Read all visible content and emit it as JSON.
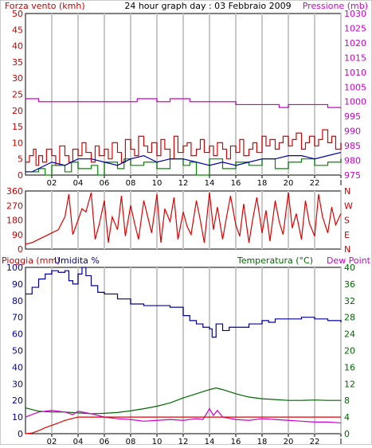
{
  "chart_data": [
    {
      "id": "wind_pressure",
      "type": "line",
      "title": "24 hour graph day : 03 Febbraio 2009",
      "ylabel_left": "Forza vento (kmh)",
      "ylabel_right": "Pressione (mb)",
      "x_ticks": [
        "02",
        "04",
        "06",
        "08",
        "10",
        "12",
        "14",
        "16",
        "18",
        "20",
        "22",
        "I"
      ],
      "y_left_ticks": [
        0,
        5,
        10,
        15,
        20,
        25,
        30,
        35,
        40,
        45,
        50
      ],
      "y_right_ticks": [
        975,
        980,
        985,
        990,
        995,
        1000,
        1005,
        1010,
        1015,
        1020,
        1025,
        1030
      ],
      "ylim_left": [
        0,
        50
      ],
      "ylim_right": [
        975,
        1030
      ],
      "xlim": [
        0,
        24
      ],
      "series": [
        {
          "role": "pressure",
          "color": "#cc00cc",
          "x": [
            0,
            0.5,
            1,
            2,
            3,
            4,
            5,
            6,
            7,
            8,
            8.5,
            9,
            10,
            11,
            12,
            12.5,
            13,
            14,
            15,
            16,
            17,
            18,
            19,
            19.3,
            20,
            21,
            22,
            23,
            24
          ],
          "y": [
            1001,
            1001,
            1000,
            1000,
            1000,
            1000,
            1000,
            1000,
            1000,
            1000,
            1001,
            1001,
            1000,
            1001,
            1001,
            1000,
            1000,
            1000,
            1000,
            999,
            999,
            999,
            999,
            998,
            999,
            999,
            999,
            998,
            998
          ]
        },
        {
          "role": "gust",
          "color": "#dd0000",
          "x": [
            0,
            0.3,
            0.6,
            0.8,
            1,
            1.3,
            1.6,
            2,
            2.3,
            2.6,
            3,
            3.3,
            3.6,
            4,
            4.3,
            4.6,
            5,
            5.3,
            5.6,
            6,
            6.3,
            6.6,
            7,
            7.3,
            7.6,
            8,
            8.3,
            8.6,
            9,
            9.3,
            9.6,
            10,
            10.3,
            10.6,
            11,
            11.3,
            11.6,
            12,
            12.3,
            12.6,
            13,
            13.3,
            13.6,
            14,
            14.3,
            14.6,
            15,
            15.3,
            15.6,
            16,
            16.3,
            16.6,
            17,
            17.3,
            17.6,
            18,
            18.3,
            18.6,
            19,
            19.3,
            19.6,
            20,
            20.3,
            20.6,
            21,
            21.3,
            21.6,
            22,
            22.3,
            22.6,
            23,
            23.3,
            23.6,
            24
          ],
          "y": [
            4,
            6,
            8,
            3,
            6,
            4,
            8,
            6,
            3,
            9,
            6,
            4,
            8,
            6,
            10,
            7,
            4,
            9,
            6,
            8,
            5,
            10,
            7,
            4,
            11,
            8,
            6,
            12,
            9,
            7,
            10,
            6,
            11,
            8,
            5,
            12,
            7,
            9,
            10,
            6,
            8,
            11,
            7,
            9,
            6,
            10,
            8,
            5,
            9,
            7,
            11,
            6,
            8,
            10,
            7,
            12,
            9,
            11,
            8,
            10,
            12,
            9,
            11,
            13,
            8,
            10,
            12,
            9,
            11,
            14,
            10,
            12,
            8,
            10
          ]
        },
        {
          "role": "wind_avg",
          "color": "#008800",
          "x": [
            0,
            1,
            1.5,
            2,
            3,
            3.5,
            4,
            5,
            5.5,
            6,
            7,
            7.5,
            8,
            9,
            10,
            11,
            12,
            12.5,
            13,
            14,
            15,
            16,
            17,
            18,
            19,
            20,
            21,
            22,
            23,
            24
          ],
          "y": [
            1,
            2,
            0,
            3,
            1,
            4,
            2,
            3,
            0,
            4,
            2,
            5,
            3,
            4,
            2,
            5,
            3,
            4,
            0,
            5,
            2,
            4,
            3,
            5,
            2,
            4,
            5,
            3,
            4,
            5
          ]
        },
        {
          "role": "wind_mean",
          "color": "#0000aa",
          "x": [
            0,
            0.5,
            1,
            2,
            3,
            4,
            5,
            6,
            7,
            8,
            9,
            10,
            11,
            12,
            13,
            14,
            15,
            16,
            17,
            18,
            19,
            20,
            21,
            22,
            23,
            24
          ],
          "y": [
            1,
            1,
            2,
            4,
            3,
            5,
            5,
            4,
            3,
            5,
            6,
            4,
            5,
            5,
            4,
            3,
            4,
            3,
            4,
            5,
            5,
            6,
            6,
            5,
            6,
            7
          ]
        }
      ]
    },
    {
      "id": "wind_direction",
      "type": "line",
      "y_left_ticks": [
        0,
        90,
        180,
        270,
        360
      ],
      "y_right_ticks": [
        "N",
        "E",
        "S",
        "W",
        "N"
      ],
      "ylim": [
        0,
        360
      ],
      "xlim": [
        0,
        24
      ],
      "series": [
        {
          "role": "direction",
          "color": "#dd0000",
          "x": [
            0,
            0.5,
            1,
            1.5,
            2,
            2.5,
            3,
            3.3,
            3.6,
            4,
            4.3,
            4.6,
            5,
            5.3,
            5.6,
            6,
            6.3,
            6.6,
            7,
            7.3,
            7.6,
            8,
            8.3,
            8.6,
            9,
            9.3,
            9.6,
            10,
            10.3,
            10.6,
            11,
            11.3,
            11.6,
            12,
            12.3,
            12.6,
            13,
            13.3,
            13.6,
            14,
            14.3,
            14.6,
            15,
            15.3,
            15.6,
            16,
            16.3,
            16.6,
            17,
            17.3,
            17.6,
            18,
            18.3,
            18.6,
            19,
            19.3,
            19.6,
            20,
            20.3,
            20.6,
            21,
            21.3,
            21.6,
            22,
            22.3,
            22.6,
            23,
            23.3,
            23.6,
            24
          ],
          "y": [
            30,
            40,
            60,
            80,
            100,
            120,
            200,
            340,
            90,
            180,
            250,
            230,
            350,
            60,
            150,
            300,
            40,
            200,
            120,
            330,
            80,
            270,
            160,
            60,
            300,
            200,
            100,
            340,
            40,
            250,
            170,
            320,
            60,
            230,
            140,
            90,
            300,
            180,
            40,
            350,
            120,
            260,
            60,
            200,
            330,
            150,
            80,
            280,
            40,
            190,
            320,
            100,
            240,
            50,
            300,
            170,
            90,
            350,
            130,
            220,
            60,
            300,
            160,
            80,
            340,
            200,
            100,
            260,
            150,
            220
          ]
        }
      ]
    },
    {
      "id": "rain_hum_temp",
      "type": "line",
      "ylabel_left": "Pioggia (mm)",
      "ylabel_left2": "Umidita %",
      "ylabel_right": "Temperatura (°C)",
      "ylabel_right2": "Dew Point",
      "y_left_ticks": [
        0,
        10,
        20,
        30,
        40,
        50,
        60,
        70,
        80,
        90,
        100
      ],
      "y_right_ticks": [
        0,
        4,
        8,
        12,
        16,
        20,
        24,
        28,
        32,
        36,
        40
      ],
      "ylim_left": [
        0,
        100
      ],
      "ylim_right": [
        0,
        40
      ],
      "xlim": [
        0,
        24
      ],
      "series": [
        {
          "role": "humidity",
          "color": "#000099",
          "axis": "left",
          "x": [
            0,
            0.5,
            1,
            1.5,
            2,
            2.5,
            3,
            3.3,
            3.6,
            4,
            4.3,
            4.6,
            5,
            5.5,
            6,
            7,
            8,
            8.5,
            9,
            10,
            11,
            12,
            12.5,
            13,
            13.5,
            14,
            14.2,
            14.5,
            15,
            15.5,
            16,
            17,
            18,
            18.5,
            19,
            20,
            21,
            22,
            23,
            24
          ],
          "y": [
            84,
            88,
            93,
            96,
            98,
            97,
            98,
            92,
            90,
            96,
            100,
            95,
            89,
            85,
            84,
            81,
            78,
            78,
            77,
            77,
            76,
            71,
            68,
            66,
            64,
            63,
            58,
            66,
            62,
            64,
            64,
            66,
            68,
            67,
            69,
            69,
            70,
            69,
            68,
            67
          ]
        },
        {
          "role": "temperature",
          "color": "#006600",
          "axis": "right",
          "x": [
            0,
            1,
            2,
            3,
            4,
            5,
            6,
            7,
            8,
            9,
            10,
            11,
            12,
            13,
            14,
            14.5,
            15,
            16,
            17,
            18,
            19,
            20,
            21,
            22,
            23,
            24
          ],
          "y": [
            6.2,
            5.4,
            5.2,
            5.2,
            5.0,
            4.8,
            4.9,
            5.1,
            5.5,
            6.0,
            6.6,
            7.4,
            8.6,
            9.6,
            10.6,
            11.0,
            10.6,
            9.6,
            8.8,
            8.4,
            8.2,
            8.0,
            8.0,
            8.1,
            8.0,
            8.0
          ]
        },
        {
          "role": "dew_point",
          "color": "#cc00cc",
          "axis": "right",
          "x": [
            0,
            1,
            2,
            3,
            3.6,
            4,
            5,
            6,
            7,
            8,
            9,
            10,
            11,
            12,
            13,
            13.5,
            14,
            14.3,
            14.6,
            15,
            16,
            17,
            18,
            19,
            20,
            21,
            22,
            23,
            24
          ],
          "y": [
            4.0,
            5.2,
            5.6,
            5.2,
            4.6,
            5.4,
            4.8,
            4.0,
            3.6,
            3.4,
            3.0,
            3.2,
            3.4,
            3.2,
            3.6,
            3.4,
            6.0,
            4.4,
            5.6,
            4.0,
            3.4,
            3.2,
            3.6,
            3.4,
            3.2,
            3.0,
            2.8,
            2.8,
            2.6
          ]
        },
        {
          "role": "rain",
          "color": "#dd0000",
          "axis": "left",
          "x": [
            0,
            0.5,
            1,
            1.5,
            2,
            2.5,
            3,
            3.5,
            4,
            5,
            6,
            8,
            10,
            12,
            14,
            16,
            18,
            20,
            22,
            24
          ],
          "y": [
            0,
            0.4,
            1.8,
            3.6,
            5,
            6.4,
            8,
            9,
            10,
            10,
            10,
            10,
            10,
            10,
            10,
            10,
            10,
            10,
            10,
            10
          ]
        }
      ]
    }
  ]
}
